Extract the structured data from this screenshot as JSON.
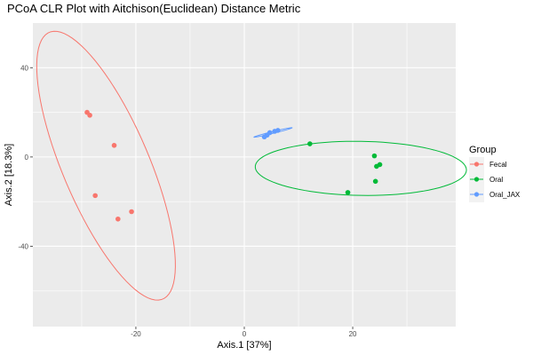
{
  "chart_data": {
    "type": "scatter",
    "title": "PCoA CLR Plot with Aitchison(Euclidean) Distance Metric",
    "xlabel": "Axis.1   [37%]",
    "ylabel": "Axis.2   [18.3%]",
    "xlim": [
      -39,
      39
    ],
    "ylim": [
      -76,
      60
    ],
    "x_ticks": [
      -20,
      0,
      20
    ],
    "y_ticks": [
      -40,
      0,
      40
    ],
    "x_tick_labels": [
      "-20",
      "0",
      "20"
    ],
    "y_tick_labels": [
      "-40",
      "0",
      "40"
    ],
    "grid": true,
    "legend_title": "Group",
    "legend_position": "right",
    "series": [
      {
        "name": "Fecal",
        "color": "#F8766D",
        "points": [
          {
            "x": -29.0,
            "y": 20.0
          },
          {
            "x": -28.5,
            "y": 18.7
          },
          {
            "x": -24.0,
            "y": 5.2
          },
          {
            "x": -27.5,
            "y": -17.3
          },
          {
            "x": -20.8,
            "y": -24.5
          },
          {
            "x": -23.3,
            "y": -27.8
          }
        ],
        "ellipse": {
          "center": [
            -25.5,
            -3.9
          ],
          "semi_major": 61,
          "semi_minor": 8.5,
          "angle_deg": -80.9
        }
      },
      {
        "name": "Oral",
        "color": "#00BA38",
        "points": [
          {
            "x": 12.1,
            "y": 5.9
          },
          {
            "x": 19.1,
            "y": -15.9
          },
          {
            "x": 24.0,
            "y": 0.5
          },
          {
            "x": 25.0,
            "y": -3.4
          },
          {
            "x": 24.4,
            "y": -4.2
          },
          {
            "x": 24.2,
            "y": -10.9
          }
        ],
        "ellipse": {
          "center": [
            21.5,
            -5.1
          ],
          "semi_major": 19.5,
          "semi_minor": 12.1,
          "angle_deg": -3.4
        }
      },
      {
        "name": "Oral_JAX",
        "color": "#619CFF",
        "points": [
          {
            "x": 3.7,
            "y": 9.0
          },
          {
            "x": 4.2,
            "y": 9.8
          },
          {
            "x": 4.7,
            "y": 10.9
          },
          {
            "x": 5.6,
            "y": 11.5
          },
          {
            "x": 6.2,
            "y": 11.9
          }
        ],
        "ellipse": {
          "center": [
            5.3,
            11.0
          ],
          "semi_major": 4.1,
          "semi_minor": 0.35,
          "angle_deg": 31.0
        }
      }
    ]
  }
}
